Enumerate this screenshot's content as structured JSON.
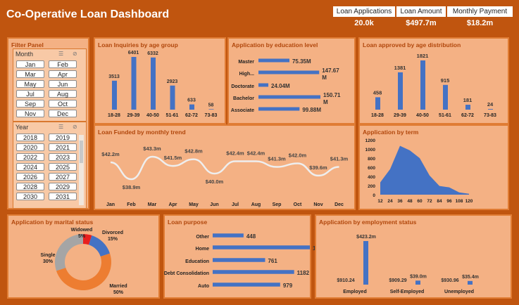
{
  "header": {
    "title": "Co-Operative Loan Dashboard",
    "kpis": [
      {
        "label": "Loan Applications",
        "value": "20.0k"
      },
      {
        "label": "Loan Amount",
        "value": "$497.7m"
      },
      {
        "label": "Monthly Payment",
        "value": "$18.2m"
      }
    ]
  },
  "filter": {
    "title": "Filter Panel",
    "month_label": "Month",
    "months": [
      "Jan",
      "Feb",
      "Mar",
      "Apr",
      "May",
      "Jun",
      "Jul",
      "Aug",
      "Sep",
      "Oct",
      "Nov",
      "Dec"
    ],
    "year_label": "Year",
    "years": [
      "2018",
      "2019",
      "2020",
      "2021",
      "2022",
      "2023",
      "2024",
      "2025",
      "2026",
      "2027",
      "2028",
      "2029",
      "2030",
      "2031"
    ]
  },
  "colors": {
    "bar": "#4472c4",
    "panel": "#f4b184",
    "border": "#e07c34",
    "title": "#b1470c",
    "background": "#c0550f",
    "line": "#eeeeee"
  },
  "chart_data": [
    {
      "id": "inq",
      "type": "bar",
      "title": "Loan Inquiries by age group",
      "categories": [
        "18-28",
        "29-39",
        "40-50",
        "51-61",
        "62-72",
        "73-83"
      ],
      "values": [
        3513,
        6401,
        6332,
        2923,
        633,
        58
      ],
      "labels": [
        "3513",
        "6401",
        "6332",
        "2923",
        "633",
        "58"
      ]
    },
    {
      "id": "edu",
      "type": "bar",
      "orientation": "horizontal",
      "title": "Application by education level",
      "categories": [
        "Master",
        "High...",
        "Doctorate",
        "Bachelor",
        "Associate"
      ],
      "values": [
        75.35,
        147.67,
        24.04,
        150.71,
        99.88
      ],
      "labels": [
        "75.35M",
        "147.67 M",
        "24.04M",
        "150.71 M",
        "99.88M"
      ]
    },
    {
      "id": "appr",
      "type": "bar",
      "title": "Loan approved by age distribution",
      "categories": [
        "18-28",
        "29-39",
        "40-50",
        "51-61",
        "62-72",
        "73-83"
      ],
      "values": [
        458,
        1381,
        1821,
        915,
        181,
        24
      ],
      "labels": [
        "458",
        "1381",
        "1821",
        "915",
        "181",
        "24"
      ]
    },
    {
      "id": "fund",
      "type": "line",
      "title": "Loan Funded by monthly trend",
      "categories": [
        "Jan",
        "Feb",
        "Mar",
        "Apr",
        "May",
        "Jun",
        "Jul",
        "Aug",
        "Sep",
        "Oct",
        "Nov",
        "Dec"
      ],
      "values": [
        42.2,
        38.9,
        43.3,
        41.5,
        42.8,
        40.0,
        42.4,
        42.4,
        41.3,
        42.0,
        39.6,
        41.3
      ],
      "labels": [
        "$42.2m",
        "$38.9m",
        "$43.3m",
        "$41.5m",
        "$42.8m",
        "$40.0m",
        "$42.4m",
        "$42.4m",
        "$41.3m",
        "$42.0m",
        "$39.6m",
        "$41.3m"
      ]
    },
    {
      "id": "term",
      "type": "area",
      "title": "Application by term",
      "x": [
        12,
        24,
        36,
        48,
        60,
        72,
        84,
        96,
        108,
        120
      ],
      "values": [
        270,
        560,
        1070,
        970,
        800,
        420,
        190,
        160,
        50,
        20
      ],
      "ylim": [
        0,
        1200
      ],
      "yticks": [
        0,
        200,
        400,
        600,
        800,
        1000,
        1200
      ]
    },
    {
      "id": "marital",
      "type": "pie",
      "title": "Application by marital status",
      "categories": [
        "Widowed",
        "Divorced",
        "Married",
        "Single"
      ],
      "values": [
        5,
        15,
        50,
        30
      ],
      "labels": [
        "Widowed 5%",
        "Divorced 15%",
        "Married 50%",
        "Single 30%"
      ],
      "colors": [
        "#e8201e",
        "#4472c4",
        "#ed7d31",
        "#a5a5a5"
      ]
    },
    {
      "id": "purpose",
      "type": "bar",
      "orientation": "horizontal",
      "title": "Loan purpose",
      "categories": [
        "Other",
        "Home",
        "Education",
        "Debt Consolidation",
        "Auto"
      ],
      "values": [
        448,
        1410,
        761,
        1182,
        979
      ],
      "labels": [
        "448",
        "1410",
        "761",
        "1182",
        "979"
      ]
    },
    {
      "id": "emp",
      "type": "bar",
      "title": "Application by employment status",
      "categories": [
        "Employed",
        "Self-Employed",
        "Unemployed"
      ],
      "series": [
        {
          "values": [
            910.24,
            909.29,
            930.96
          ],
          "labels": [
            "$910.24",
            "$909.29",
            "$930.96"
          ]
        },
        {
          "values": [
            423.2,
            39.0,
            35.4
          ],
          "labels": [
            "$423.2m",
            "$39.0m",
            "$35.4m"
          ]
        }
      ]
    }
  ]
}
